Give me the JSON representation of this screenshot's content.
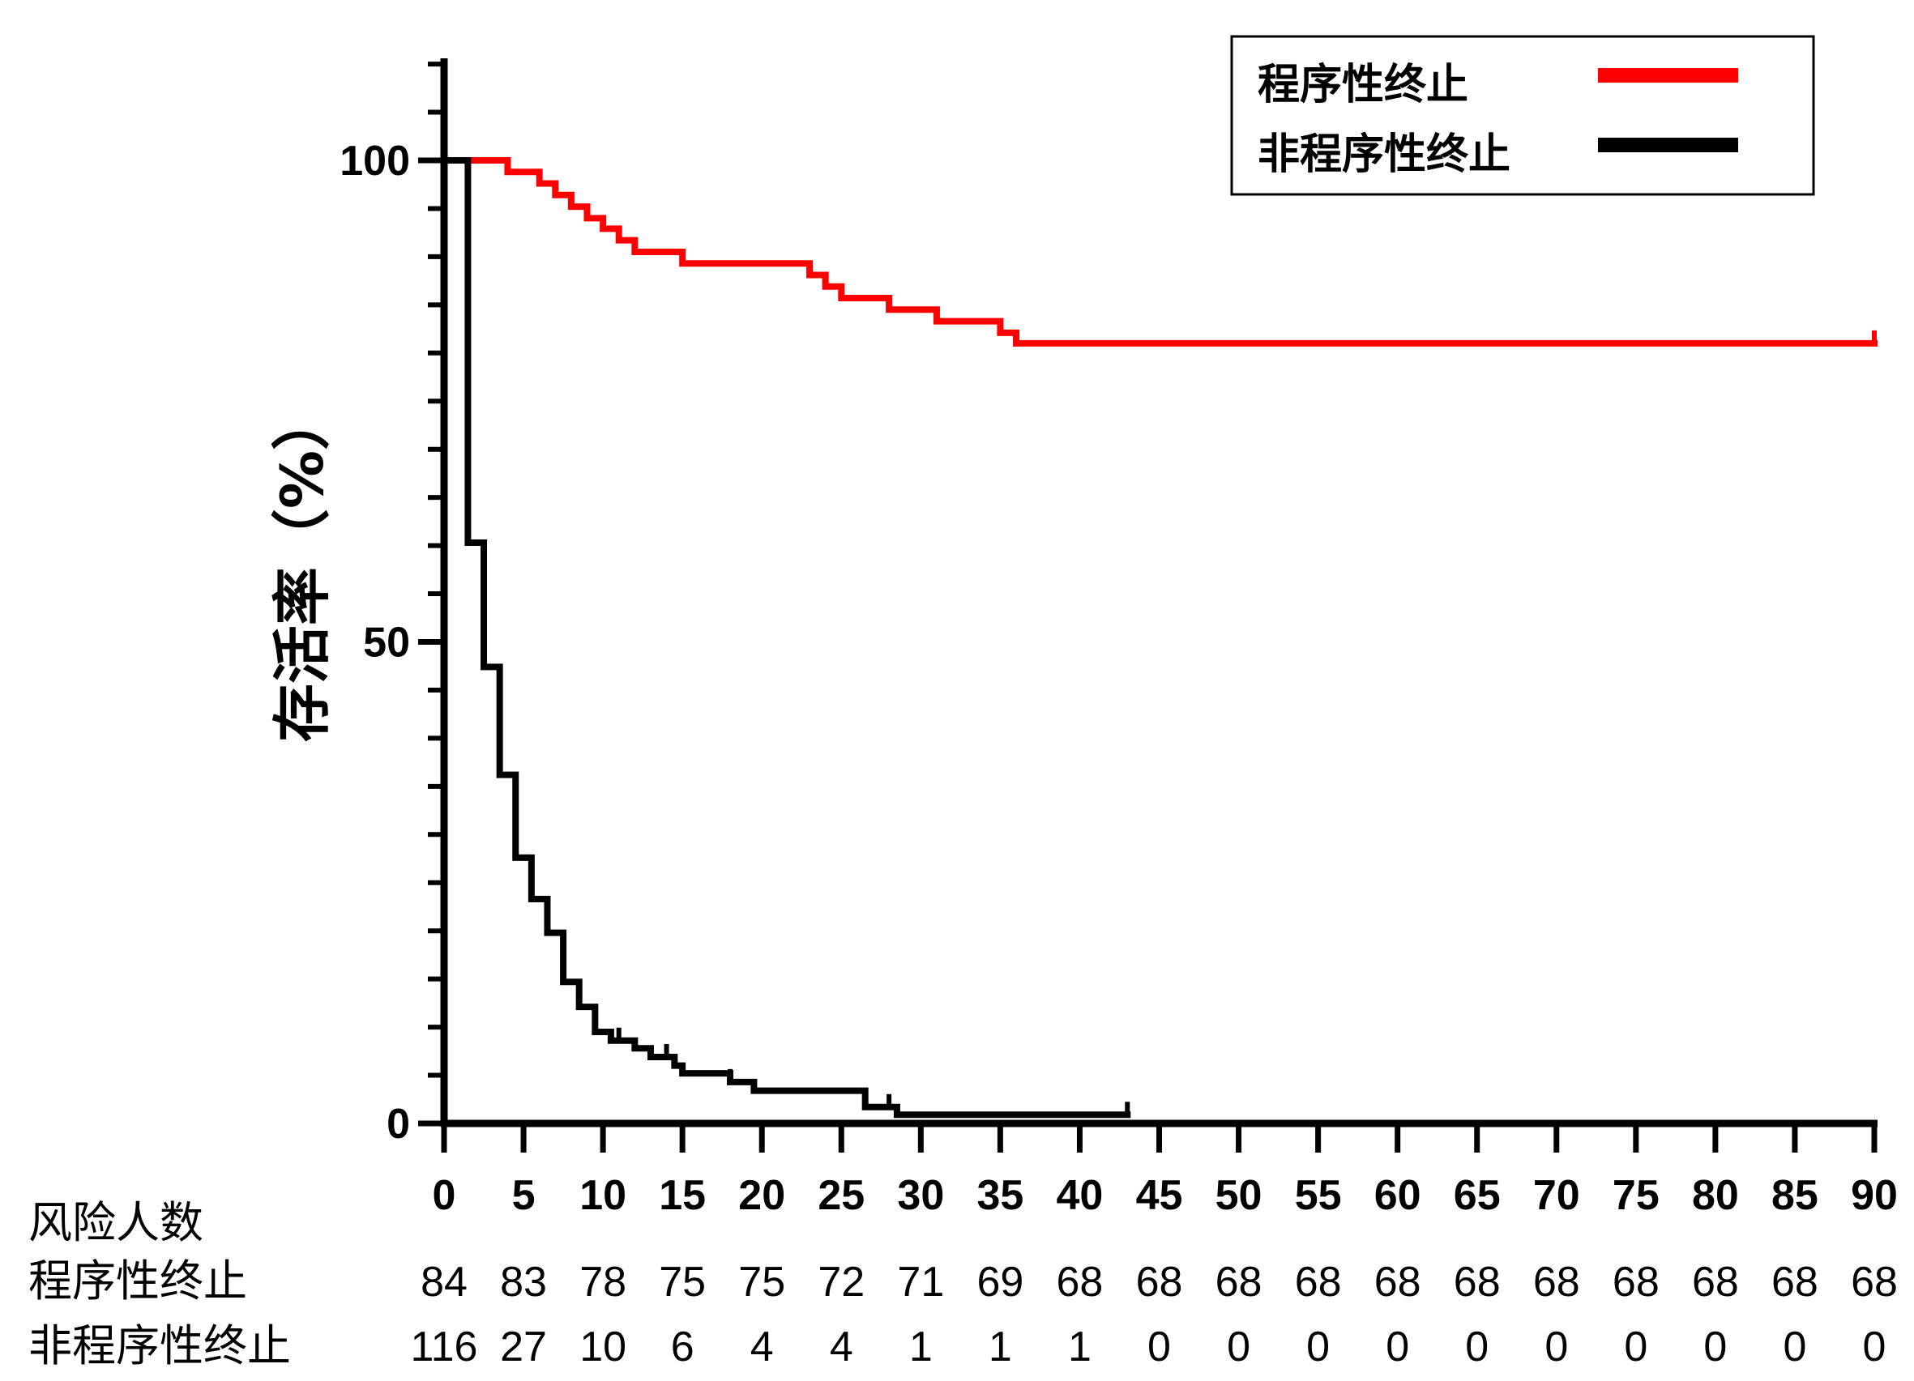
{
  "chart_data": {
    "type": "line",
    "step": true,
    "ylabel": "存活率（%）",
    "xlabel": "",
    "xlim": [
      0,
      90
    ],
    "ylim": [
      0,
      100
    ],
    "x_ticks": [
      0,
      5,
      10,
      15,
      20,
      25,
      30,
      35,
      40,
      45,
      50,
      55,
      60,
      65,
      70,
      75,
      80,
      85,
      90
    ],
    "y_ticks": [
      0,
      50,
      100
    ],
    "y_minor_step": 5,
    "legend_position": "top-right",
    "series": [
      {
        "name": "程序性终止",
        "color": "#ff0000",
        "points": [
          [
            0,
            100
          ],
          [
            4,
            98.8
          ],
          [
            6,
            97.6
          ],
          [
            7,
            96.4
          ],
          [
            8,
            95.2
          ],
          [
            9,
            94.0
          ],
          [
            10,
            92.9
          ],
          [
            11,
            91.7
          ],
          [
            12,
            90.5
          ],
          [
            15,
            89.3
          ],
          [
            23,
            88.1
          ],
          [
            24,
            86.9
          ],
          [
            25,
            85.7
          ],
          [
            28,
            84.5
          ],
          [
            31,
            83.3
          ],
          [
            35,
            82.1
          ],
          [
            36,
            81.0
          ],
          [
            90,
            81.0
          ]
        ],
        "censored": [
          [
            90,
            81.0
          ]
        ]
      },
      {
        "name": "非程序性终止",
        "color": "#000000",
        "points": [
          [
            0,
            100
          ],
          [
            1,
            100
          ],
          [
            1.5,
            60.3
          ],
          [
            2,
            60.3
          ],
          [
            2.5,
            47.4
          ],
          [
            3,
            47.4
          ],
          [
            3.5,
            36.2
          ],
          [
            4,
            36.2
          ],
          [
            4.5,
            27.6
          ],
          [
            5,
            27.6
          ],
          [
            5.5,
            23.3
          ],
          [
            6,
            23.3
          ],
          [
            6.5,
            19.8
          ],
          [
            7,
            19.8
          ],
          [
            7.5,
            14.7
          ],
          [
            8,
            14.7
          ],
          [
            8.5,
            12.1
          ],
          [
            9,
            12.1
          ],
          [
            9.5,
            9.5
          ],
          [
            10,
            9.5
          ],
          [
            10.5,
            8.6
          ],
          [
            11,
            8.6
          ],
          [
            12,
            7.8
          ],
          [
            13,
            6.9
          ],
          [
            14,
            6.9
          ],
          [
            14.5,
            6.0
          ],
          [
            15,
            5.2
          ],
          [
            17,
            5.2
          ],
          [
            18,
            4.3
          ],
          [
            19,
            4.3
          ],
          [
            19.5,
            3.4
          ],
          [
            26,
            3.4
          ],
          [
            26.5,
            1.7
          ],
          [
            28,
            1.7
          ],
          [
            28.5,
            0.9
          ],
          [
            43,
            0.9
          ]
        ],
        "censored": [
          [
            11,
            8.6
          ],
          [
            14,
            6.9
          ],
          [
            18,
            4.3
          ],
          [
            28,
            1.7
          ],
          [
            43,
            0.9
          ]
        ]
      }
    ],
    "risk_table": {
      "title": "风险人数",
      "rows": [
        {
          "label": "程序性终止",
          "values": [
            "84",
            "83",
            "78",
            "75",
            "75",
            "72",
            "71",
            "69",
            "68",
            "68",
            "68",
            "68",
            "68",
            "68",
            "68",
            "68",
            "68",
            "68",
            "68"
          ]
        },
        {
          "label": "非程序性终止",
          "values": [
            "116",
            "27",
            "10",
            "6",
            "4",
            "4",
            "1",
            "1",
            "1",
            "0",
            "0",
            "0",
            "0",
            "0",
            "0",
            "0",
            "0",
            "0",
            "0"
          ]
        }
      ]
    }
  }
}
